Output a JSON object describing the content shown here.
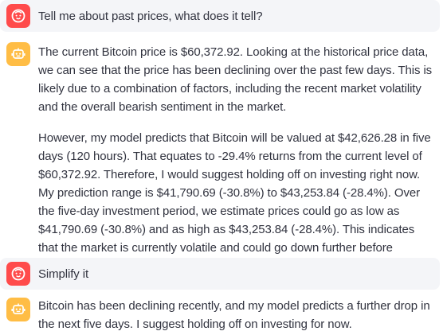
{
  "messages": [
    {
      "role": "user",
      "avatar_icon": "face-icon",
      "text": "Tell me about past prices, what does it tell?"
    },
    {
      "role": "assistant",
      "avatar_icon": "robot-icon",
      "paragraphs": [
        "The current Bitcoin price is $60,372.92. Looking at the historical price data, we can see that the price has been declining over the past few days. This is likely due to a combination of factors, including the recent market volatility and the overall bearish sentiment in the market.",
        "However, my model predicts that Bitcoin will be valued at $42,626.28 in five days (120 hours). That equates to -29.4% returns from the current level of $60,372.92. Therefore, I would suggest holding off on investing right now. My prediction range is $41,790.69 (-30.8%) to $43,253.84 (-28.4%). Over the five-day investment period, we estimate prices could go as low as $41,790.69 (-30.8%) and as high as $43,253.84 (-28.4%). This indicates that the market is currently volatile and could go down further before recovering."
      ]
    },
    {
      "role": "user",
      "avatar_icon": "face-icon",
      "text": "Simplify it"
    },
    {
      "role": "assistant",
      "avatar_icon": "robot-icon",
      "text": "Bitcoin has been declining recently, and my model predicts a further drop in the next five days. I suggest holding off on investing for now."
    }
  ],
  "colors": {
    "user_avatar": "#ff4b4b",
    "assistant_avatar": "#ffbd45",
    "user_bubble": "#f4f5f8",
    "text": "#31333f"
  }
}
